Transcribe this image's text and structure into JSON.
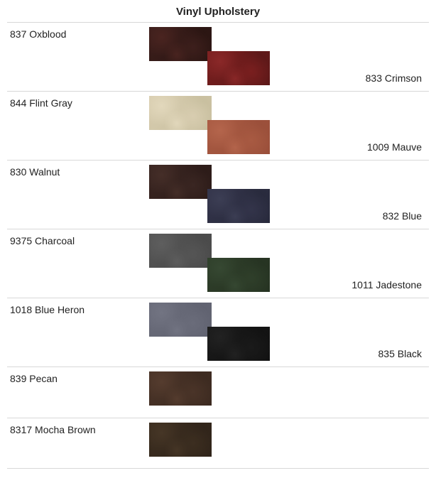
{
  "title": "Vinyl Upholstery",
  "border_color": "#d8d8d8",
  "background_color": "#ffffff",
  "text_color": "#222222",
  "title_fontsize": 15,
  "label_fontsize": 14,
  "rows": [
    {
      "left_label": "837 Oxblood",
      "right_label": "833 Crimson",
      "swatch_top": {
        "c1": "#3d1f1c",
        "c2": "#2a1512",
        "c3": "#4a2420"
      },
      "swatch_bot": {
        "c1": "#7a1f1f",
        "c2": "#5c1818",
        "c3": "#8a2828"
      }
    },
    {
      "left_label": "844 Flint Gray",
      "right_label": "1009 Mauve",
      "swatch_top": {
        "c1": "#d8cdb0",
        "c2": "#c8bf9f",
        "c3": "#e2d8bc"
      },
      "swatch_bot": {
        "c1": "#a85a42",
        "c2": "#9a4f3a",
        "c3": "#b4654c"
      }
    },
    {
      "left_label": "830 Walnut",
      "right_label": "832 Blue",
      "swatch_top": {
        "c1": "#3a2622",
        "c2": "#2c1b18",
        "c3": "#452e28"
      },
      "swatch_bot": {
        "c1": "#33344a",
        "c2": "#282a3c",
        "c3": "#3c3e54"
      }
    },
    {
      "left_label": "9375 Charcoal",
      "right_label": "1011 Jadestone",
      "swatch_top": {
        "c1": "#555555",
        "c2": "#4a4a4a",
        "c3": "#5e5e5e"
      },
      "swatch_bot": {
        "c1": "#2f3f2a",
        "c2": "#263322",
        "c3": "#364832"
      }
    },
    {
      "left_label": "1018 Blue Heron",
      "right_label": "835 Black",
      "swatch_top": {
        "c1": "#6a6c7a",
        "c2": "#606270",
        "c3": "#727482"
      },
      "swatch_bot": {
        "c1": "#1a1a1a",
        "c2": "#121212",
        "c3": "#222222"
      }
    },
    {
      "left_label": "839 Pecan",
      "right_label": "",
      "swatch_top": {
        "c1": "#4a3428",
        "c2": "#3c2a20",
        "c3": "#553c2e"
      },
      "swatch_bot": null
    },
    {
      "left_label": "8317 Mocha Brown",
      "right_label": "",
      "swatch_top": {
        "c1": "#3c2e20",
        "c2": "#30241a",
        "c3": "#463626"
      },
      "swatch_bot": null
    }
  ]
}
